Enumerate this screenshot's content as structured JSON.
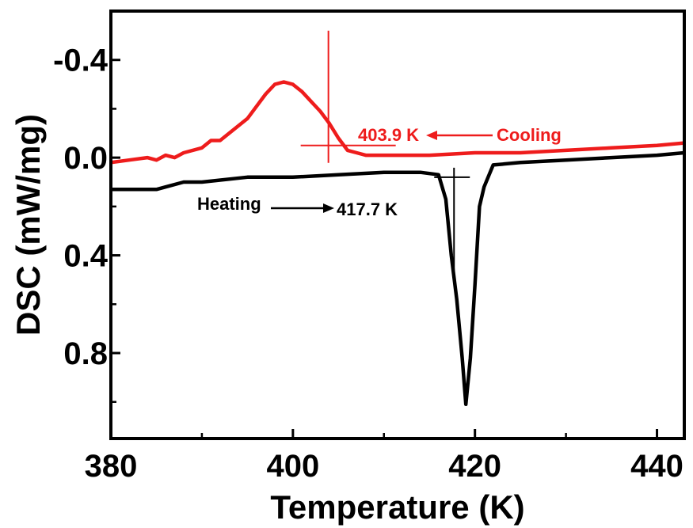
{
  "chart_data": {
    "type": "line",
    "xlabel": "Temperature (K)",
    "ylabel": "DSC (mW/mg)",
    "xlim": [
      380,
      443
    ],
    "ylim": [
      -0.6,
      1.15
    ],
    "y_inverted": true,
    "grid": false,
    "x_ticks": [
      380,
      400,
      420,
      440
    ],
    "x_tick_labels": [
      "380",
      "400",
      "420",
      "440"
    ],
    "y_ticks": [
      -0.4,
      0.0,
      0.4,
      0.8
    ],
    "y_tick_labels": [
      "-0.4",
      "0.0",
      "0.4",
      "0.8"
    ],
    "x_minor_ticks": [
      390,
      410,
      430
    ],
    "y_minor_ticks": [
      -0.2,
      0.2,
      0.6,
      1.0
    ],
    "colors": {
      "cooling": "#ee1c1c",
      "heating": "#000000"
    },
    "series": [
      {
        "points": [
          [
            380,
            0.02
          ],
          [
            382,
            0.01
          ],
          [
            384,
            0.0
          ],
          [
            385,
            0.01
          ],
          [
            386,
            -0.01
          ],
          [
            387,
            0.0
          ],
          [
            388,
            -0.02
          ],
          [
            390,
            -0.04
          ],
          [
            391,
            -0.07
          ],
          [
            392,
            -0.07
          ],
          [
            393,
            -0.1
          ],
          [
            394,
            -0.13
          ],
          [
            395,
            -0.16
          ],
          [
            396,
            -0.21
          ],
          [
            397,
            -0.26
          ],
          [
            398,
            -0.3
          ],
          [
            399,
            -0.31
          ],
          [
            400,
            -0.3
          ],
          [
            401,
            -0.27
          ],
          [
            402,
            -0.23
          ],
          [
            403,
            -0.19
          ],
          [
            404,
            -0.14
          ],
          [
            405,
            -0.08
          ],
          [
            406,
            -0.03
          ],
          [
            407,
            -0.02
          ],
          [
            408,
            -0.01
          ],
          [
            410,
            -0.01
          ],
          [
            415,
            -0.01
          ],
          [
            420,
            -0.02
          ],
          [
            425,
            -0.02
          ],
          [
            430,
            -0.03
          ],
          [
            435,
            -0.04
          ],
          [
            440,
            -0.05
          ],
          [
            443,
            -0.06
          ]
        ]
      },
      {
        "points": [
          [
            380,
            0.13
          ],
          [
            385,
            0.13
          ],
          [
            386,
            0.12
          ],
          [
            388,
            0.1
          ],
          [
            390,
            0.1
          ],
          [
            395,
            0.08
          ],
          [
            400,
            0.08
          ],
          [
            405,
            0.07
          ],
          [
            410,
            0.06
          ],
          [
            414,
            0.06
          ],
          [
            416,
            0.07
          ],
          [
            416.8,
            0.17
          ],
          [
            417.4,
            0.4
          ],
          [
            418,
            0.58
          ],
          [
            418.6,
            0.82
          ],
          [
            419,
            1.01
          ],
          [
            419.5,
            0.82
          ],
          [
            420,
            0.52
          ],
          [
            420.5,
            0.2
          ],
          [
            421,
            0.12
          ],
          [
            422,
            0.03
          ],
          [
            425,
            0.02
          ],
          [
            430,
            0.01
          ],
          [
            435,
            0.0
          ],
          [
            440,
            -0.01
          ],
          [
            443,
            -0.02
          ]
        ]
      }
    ],
    "annotations": [
      {
        "label": "403.9 K",
        "arrow_label": "Cooling",
        "x": 403.9,
        "y": -0.05,
        "series_index": 0
      },
      {
        "label": "Heating",
        "arrow_label": "417.7 K",
        "x": 417.7,
        "y": 0.08,
        "series_index": 1
      }
    ]
  }
}
